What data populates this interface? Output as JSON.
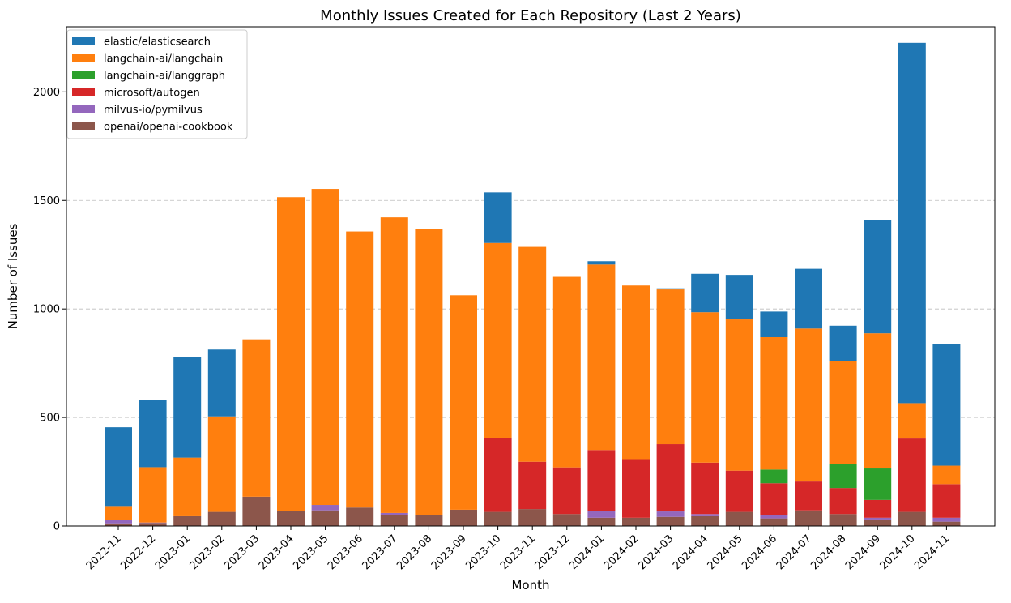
{
  "chart_data": {
    "type": "bar",
    "stacked": true,
    "title": "Monthly Issues Created for Each Repository (Last 2 Years)",
    "xlabel": "Month",
    "ylabel": "Number of Issues",
    "ylim": [
      0,
      2300
    ],
    "yticks": [
      "0",
      "500",
      "1000",
      "1500",
      "2000"
    ],
    "grid": "horizontal dashed",
    "legend_position": "top-left",
    "categories": [
      "2022-11",
      "2022-12",
      "2023-01",
      "2023-02",
      "2023-03",
      "2023-04",
      "2023-05",
      "2023-06",
      "2023-07",
      "2023-08",
      "2023-09",
      "2023-10",
      "2023-11",
      "2023-12",
      "2024-01",
      "2024-02",
      "2024-03",
      "2024-04",
      "2024-05",
      "2024-06",
      "2024-07",
      "2024-08",
      "2024-09",
      "2024-10",
      "2024-11"
    ],
    "series": [
      {
        "name": "openai/openai-cookbook",
        "color": "#8c564b",
        "values": [
          12,
          14,
          45,
          65,
          135,
          68,
          72,
          85,
          52,
          50,
          75,
          65,
          78,
          55,
          38,
          38,
          42,
          45,
          65,
          35,
          72,
          55,
          30,
          65,
          20
        ]
      },
      {
        "name": "milvus-io/pymilvus",
        "color": "#9467bd",
        "values": [
          15,
          2,
          0,
          0,
          0,
          0,
          25,
          0,
          8,
          0,
          0,
          0,
          0,
          0,
          30,
          0,
          25,
          10,
          0,
          15,
          0,
          0,
          8,
          0,
          18
        ]
      },
      {
        "name": "microsoft/autogen",
        "color": "#d62728",
        "values": [
          0,
          0,
          0,
          0,
          0,
          0,
          0,
          0,
          0,
          0,
          0,
          342,
          218,
          215,
          282,
          270,
          310,
          237,
          190,
          147,
          133,
          120,
          82,
          338,
          155
        ]
      },
      {
        "name": "langchain-ai/langgraph",
        "color": "#2ca02c",
        "values": [
          0,
          0,
          0,
          0,
          0,
          0,
          0,
          0,
          0,
          0,
          0,
          0,
          0,
          0,
          0,
          0,
          0,
          0,
          0,
          63,
          0,
          110,
          145,
          0,
          0
        ]
      },
      {
        "name": "langchain-ai/langchain",
        "color": "#ff7f0e",
        "values": [
          65,
          255,
          270,
          440,
          725,
          1447,
          1456,
          1272,
          1362,
          1318,
          988,
          897,
          990,
          878,
          855,
          800,
          713,
          693,
          697,
          610,
          705,
          475,
          623,
          163,
          85
        ]
      },
      {
        "name": "elastic/elasticsearch",
        "color": "#1f77b4",
        "values": [
          363,
          311,
          462,
          308,
          0,
          0,
          0,
          0,
          0,
          0,
          0,
          233,
          0,
          0,
          15,
          0,
          5,
          177,
          205,
          118,
          275,
          163,
          520,
          1660,
          560
        ]
      }
    ],
    "legend_order": [
      "elastic/elasticsearch",
      "langchain-ai/langchain",
      "langchain-ai/langgraph",
      "microsoft/autogen",
      "milvus-io/pymilvus",
      "openai/openai-cookbook"
    ]
  }
}
